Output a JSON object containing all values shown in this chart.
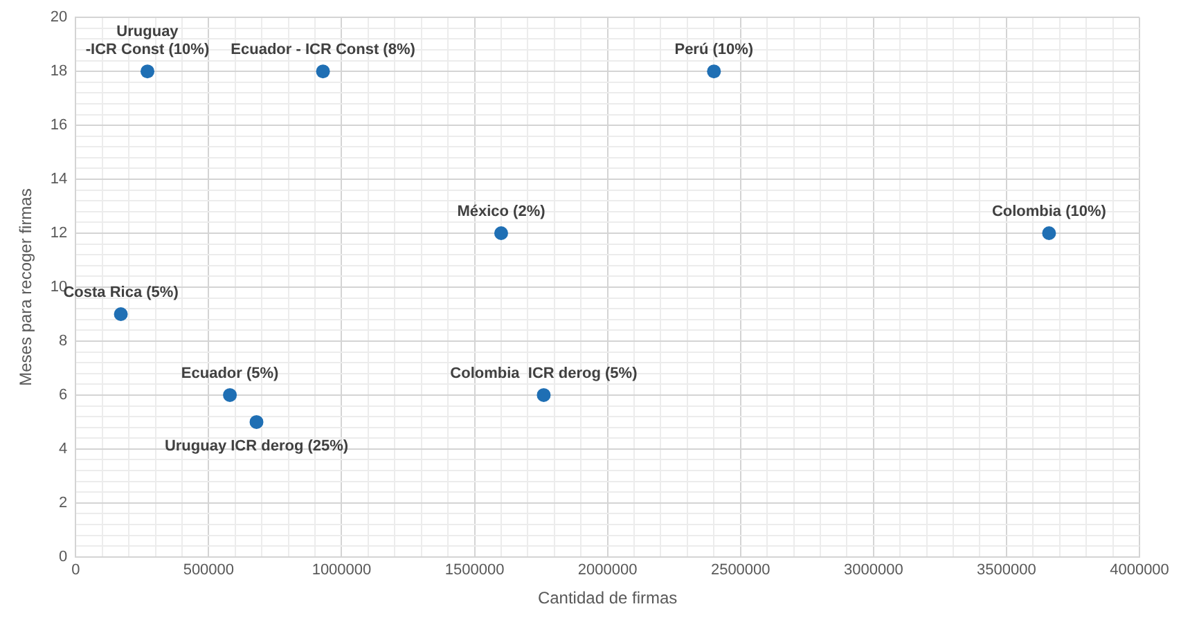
{
  "chart_data": {
    "type": "scatter",
    "xlabel": "Cantidad de firmas",
    "ylabel": "Meses para recoger firmas",
    "x": [
      270000,
      930000,
      2400000,
      1600000,
      3660000,
      170000,
      580000,
      680000,
      1760000
    ],
    "series": [
      {
        "color": "#1f6fb4",
        "values": [
          18,
          18,
          18,
          12,
          12,
          9,
          6,
          5,
          6
        ]
      }
    ],
    "annotations": [
      {
        "text": "Uruguay\n-ICR Const (10%)",
        "x": 270000,
        "y": 18
      },
      {
        "text": "Ecuador - ICR Const (8%)",
        "x": 930000,
        "y": 18
      },
      {
        "text": "Perú (10%)",
        "x": 2400000,
        "y": 18
      },
      {
        "text": "México (2%)",
        "x": 1600000,
        "y": 12
      },
      {
        "text": "Colombia (10%)",
        "x": 3660000,
        "y": 12
      },
      {
        "text": "Costa Rica (5%)",
        "x": 170000,
        "y": 9
      },
      {
        "text": "Ecuador (5%)",
        "x": 580000,
        "y": 6
      },
      {
        "text": "Uruguay ICR derog (25%)",
        "x": 680000,
        "y": 5
      },
      {
        "text": "Colombia  ICR derog (5%)",
        "x": 1760000,
        "y": 6
      }
    ],
    "marker": "circle",
    "grid": true,
    "legend": false,
    "xlim": [
      0,
      4000000
    ],
    "xticks": [
      0,
      {
        "value": 100000,
        "label": null
      },
      {
        "value": 200000,
        "label": null
      },
      {
        "value": 300000,
        "label": null
      },
      {
        "value": 400000,
        "label": null
      },
      500000,
      {
        "value": 600000,
        "label": null
      },
      {
        "value": 700000,
        "label": null
      },
      {
        "value": 800000,
        "label": null
      },
      {
        "value": 900000,
        "label": null
      },
      1000000,
      {
        "value": 1100000,
        "label": null
      },
      {
        "value": 1200000,
        "label": null
      },
      {
        "value": 1300000,
        "label": null
      },
      {
        "value": 1400000,
        "label": null
      },
      1500000,
      {
        "value": 1600000,
        "label": null
      },
      {
        "value": 1700000,
        "label": null
      },
      {
        "value": 1800000,
        "label": null
      },
      {
        "value": 1900000,
        "label": null
      },
      2000000,
      {
        "value": 2100000,
        "label": null
      },
      {
        "value": 2200000,
        "label": null
      },
      {
        "value": 2300000,
        "label": null
      },
      {
        "value": 2400000,
        "label": null
      },
      2500000,
      {
        "value": 2600000,
        "label": null
      },
      {
        "value": 2700000,
        "label": null
      },
      {
        "value": 2800000,
        "label": null
      },
      {
        "value": 2900000,
        "label": null
      },
      3000000,
      {
        "value": 3100000,
        "label": null
      },
      {
        "value": 3200000,
        "label": null
      },
      {
        "value": 3300000,
        "label": null
      },
      {
        "value": 3400000,
        "label": null
      },
      3500000,
      {
        "value": 3600000,
        "label": null
      },
      {
        "value": 3700000,
        "label": null
      },
      {
        "value": 3800000,
        "label": null
      },
      {
        "value": 3900000,
        "label": null
      },
      4000000
    ],
    "ylim": [
      0,
      20
    ],
    "yticks": [
      0,
      {
        "value": 0.4,
        "label": null
      },
      {
        "value": 0.8,
        "label": null
      },
      {
        "value": 1.2,
        "label": null
      },
      {
        "value": 1.6,
        "label": null
      },
      2,
      {
        "value": 2.4,
        "label": null
      },
      {
        "value": 2.8,
        "label": null
      },
      {
        "value": 3.2,
        "label": null
      },
      {
        "value": 3.6,
        "label": null
      },
      4,
      {
        "value": 4.4,
        "label": null
      },
      {
        "value": 4.8,
        "label": null
      },
      {
        "value": 5.2,
        "label": null
      },
      {
        "value": 5.6,
        "label": null
      },
      6,
      {
        "value": 6.4,
        "label": null
      },
      {
        "value": 6.8,
        "label": null
      },
      {
        "value": 7.2,
        "label": null
      },
      {
        "value": 7.6,
        "label": null
      },
      8,
      {
        "value": 8.4,
        "label": null
      },
      {
        "value": 8.8,
        "label": null
      },
      {
        "value": 9.2,
        "label": null
      },
      {
        "value": 9.6,
        "label": null
      },
      10,
      {
        "value": 10.4,
        "label": null
      },
      {
        "value": 10.8,
        "label": null
      },
      {
        "value": 11.2,
        "label": null
      },
      {
        "value": 11.6,
        "label": null
      },
      12,
      {
        "value": 12.4,
        "label": null
      },
      {
        "value": 12.8,
        "label": null
      },
      {
        "value": 13.2,
        "label": null
      },
      {
        "value": 13.6,
        "label": null
      },
      14,
      {
        "value": 14.4,
        "label": null
      },
      {
        "value": 14.8,
        "label": null
      },
      {
        "value": 15.2,
        "label": null
      },
      {
        "value": 15.6,
        "label": null
      },
      16,
      {
        "value": 16.4,
        "label": null
      },
      {
        "value": 16.8,
        "label": null
      },
      {
        "value": 17.2,
        "label": null
      },
      {
        "value": 17.6,
        "label": null
      },
      18,
      {
        "value": 18.4,
        "label": null
      },
      {
        "value": 18.8,
        "label": null
      },
      {
        "value": 19.2,
        "label": null
      },
      {
        "value": 19.6,
        "label": null
      },
      20
    ]
  }
}
